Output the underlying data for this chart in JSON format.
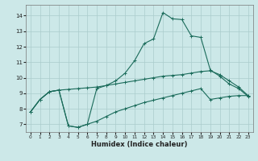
{
  "xlabel": "Humidex (Indice chaleur)",
  "bg_color": "#cce8e8",
  "grid_color": "#aacccc",
  "line_color": "#1a6b5a",
  "xlim": [
    -0.5,
    23.5
  ],
  "ylim": [
    6.5,
    14.7
  ],
  "xticks": [
    0,
    1,
    2,
    3,
    4,
    5,
    6,
    7,
    8,
    9,
    10,
    11,
    12,
    13,
    14,
    15,
    16,
    17,
    18,
    19,
    20,
    21,
    22,
    23
  ],
  "yticks": [
    7,
    8,
    9,
    10,
    11,
    12,
    13,
    14
  ],
  "line1_x": [
    0,
    1,
    2,
    3,
    4,
    5,
    6,
    7,
    8,
    9,
    10,
    11,
    12,
    13,
    14,
    15,
    16,
    17,
    18,
    19,
    20,
    21,
    22,
    23
  ],
  "line1_y": [
    7.8,
    8.6,
    9.1,
    9.2,
    6.9,
    6.8,
    7.0,
    9.3,
    9.5,
    9.8,
    10.3,
    11.1,
    12.2,
    12.5,
    14.2,
    13.8,
    13.75,
    12.7,
    12.6,
    10.5,
    10.1,
    9.6,
    9.3,
    8.8
  ],
  "line2_x": [
    0,
    1,
    2,
    3,
    4,
    5,
    6,
    7,
    8,
    9,
    10,
    11,
    12,
    13,
    14,
    15,
    16,
    17,
    18,
    19,
    20,
    21,
    22,
    23
  ],
  "line2_y": [
    7.8,
    8.6,
    9.1,
    9.2,
    9.25,
    9.3,
    9.35,
    9.4,
    9.5,
    9.6,
    9.7,
    9.8,
    9.9,
    10.0,
    10.1,
    10.15,
    10.2,
    10.3,
    10.4,
    10.45,
    10.2,
    9.8,
    9.4,
    8.85
  ],
  "line3_x": [
    0,
    1,
    2,
    3,
    4,
    5,
    6,
    7,
    8,
    9,
    10,
    11,
    12,
    13,
    14,
    15,
    16,
    17,
    18,
    19,
    20,
    21,
    22,
    23
  ],
  "line3_y": [
    7.8,
    8.6,
    9.1,
    9.2,
    6.9,
    6.8,
    7.0,
    7.2,
    7.5,
    7.8,
    8.0,
    8.2,
    8.4,
    8.55,
    8.7,
    8.85,
    9.0,
    9.15,
    9.3,
    8.6,
    8.7,
    8.8,
    8.85,
    8.85
  ]
}
